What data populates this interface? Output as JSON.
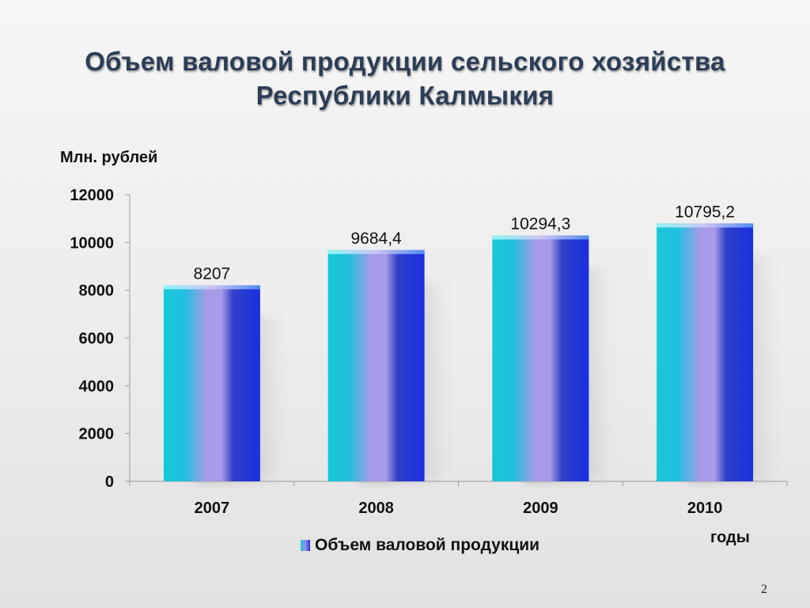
{
  "slide": {
    "title_line1": "Объем валовой продукции сельского хозяйства",
    "title_line2": "Республики Калмыкия",
    "page_number": "2"
  },
  "chart_data": {
    "type": "bar",
    "categories": [
      "2007",
      "2008",
      "2009",
      "2010"
    ],
    "series": [
      {
        "name": "Объем валовой продукции",
        "values": [
          8207,
          9684.4,
          10294.3,
          10795.2
        ],
        "labels": [
          "8207",
          "9684,4",
          "10294,3",
          "10795,2"
        ]
      }
    ],
    "ylabel": "Млн. рублей",
    "xlabel": "годы",
    "ylim": [
      0,
      12000
    ],
    "yticks": [
      0,
      2000,
      4000,
      6000,
      8000,
      10000,
      12000
    ],
    "grid": false,
    "legend": "bottom",
    "colors": {
      "bar_left": "#17c9d6",
      "bar_mid": "#a89be8",
      "bar_right": "#1a2fe0",
      "bar_top": "#6ff0f0"
    }
  }
}
